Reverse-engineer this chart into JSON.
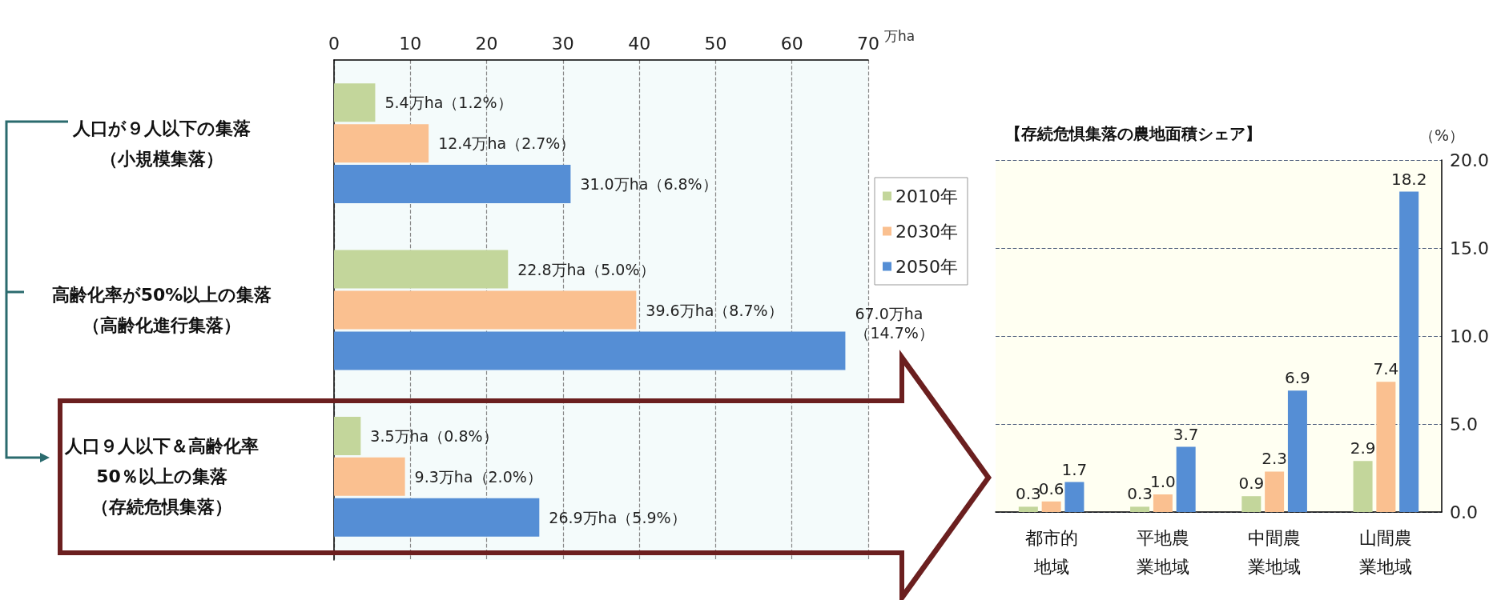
{
  "chart_data": [
    {
      "type": "bar",
      "orientation": "horizontal",
      "categories": [
        "人口が９人以下の集落（小規模集落）",
        "高齢化率が50%以上の集落（高齢化進行集落）",
        "人口９人以下＆高齢化率50％以上の集落（存続危惧集落）"
      ],
      "series": [
        {
          "color": "#c3d69b",
          "values": [
            5.4,
            22.8,
            3.5
          ],
          "value_labels": [
            "5.4万ha（1.2%）",
            "22.8万ha（5.0%）",
            "3.5万ha（0.8%）"
          ]
        },
        {
          "color": "#fac090",
          "values": [
            12.4,
            39.6,
            9.3
          ],
          "value_labels": [
            "12.4万ha（2.7%）",
            "39.6万ha（8.7%）",
            "9.3万ha（2.0%）"
          ]
        },
        {
          "color": "#558ed5",
          "values": [
            31.0,
            67.0,
            26.9
          ],
          "value_labels": [
            "31.0万ha（6.8%）",
            "67.0万ha\n（14.7%）",
            "26.9万ha（5.9%）"
          ]
        }
      ],
      "xlim": [
        0,
        70
      ],
      "xticks": [
        0,
        10,
        20,
        30,
        40,
        50,
        60,
        70
      ],
      "xlabel": "万ha",
      "grid": "x"
    },
    {
      "type": "bar",
      "title": "【存続危惧集落の農地面積シェア】",
      "categories": [
        "都市的地域",
        "平地農業地域",
        "中間農業地域",
        "山間農業地域"
      ],
      "series": [
        {
          "name": "2010年",
          "color": "#c3d69b",
          "values": [
            0.3,
            0.3,
            0.9,
            2.9
          ],
          "value_labels": [
            "0.3",
            "0.3",
            "0.9",
            "2.9"
          ]
        },
        {
          "name": "2030年",
          "color": "#fac090",
          "values": [
            0.6,
            1.0,
            2.3,
            7.4
          ],
          "value_labels": [
            "0.6",
            "1.0",
            "2.3",
            "7.4"
          ]
        },
        {
          "name": "2050年",
          "color": "#558ed5",
          "values": [
            1.7,
            3.7,
            6.9,
            18.2
          ],
          "value_labels": [
            "1.7",
            "3.7",
            "6.9",
            "18.2"
          ]
        }
      ],
      "ylim": [
        0,
        20
      ],
      "yticks": [
        {
          "value": 0,
          "label": "0.0"
        },
        {
          "value": 5,
          "label": "5.0"
        },
        {
          "value": 10,
          "label": "10.0"
        },
        {
          "value": 15,
          "label": "15.0"
        },
        {
          "value": 20,
          "label": "20.0"
        }
      ],
      "ylabel": "（%）",
      "grid": "y",
      "legend": "left"
    }
  ]
}
